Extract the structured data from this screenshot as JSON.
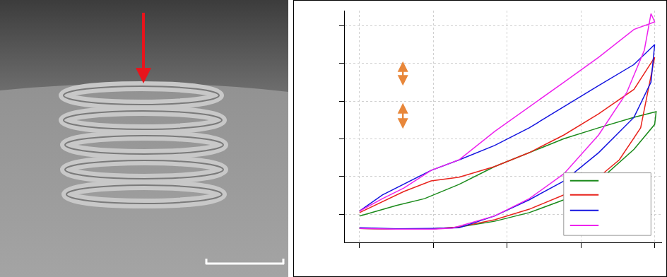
{
  "chart_data": {
    "type": "line",
    "xlim": [
      -0.2,
      4.1
    ],
    "xticks": [
      0,
      1,
      2,
      3,
      4
    ],
    "ylim": [
      0.25,
      6.4
    ],
    "yticks": [
      1,
      2,
      3,
      4,
      5,
      6
    ],
    "grid": true,
    "tick_labels": false,
    "series": [
      {
        "color": "#1a8a1a",
        "x": [
          0,
          0.5,
          1.0,
          1.35,
          1.83,
          2.3,
          2.77,
          3.24,
          3.72,
          4.0,
          4.02,
          3.72,
          3.24,
          2.77,
          2.3,
          1.83,
          1.35,
          0.88,
          0.5,
          0
        ],
        "values": [
          0.62,
          0.6,
          0.61,
          0.66,
          0.81,
          1.04,
          1.38,
          1.88,
          2.72,
          3.38,
          3.72,
          3.57,
          3.29,
          3.0,
          2.63,
          2.26,
          1.79,
          1.41,
          1.23,
          0.95
        ]
      },
      {
        "color": "#e8231c",
        "x": [
          0,
          0.5,
          1.0,
          1.35,
          1.83,
          2.3,
          2.77,
          3.24,
          3.52,
          3.81,
          4.0,
          3.72,
          3.24,
          2.77,
          2.3,
          1.83,
          1.35,
          0.97,
          0.6,
          0
        ],
        "values": [
          0.62,
          0.6,
          0.61,
          0.66,
          0.85,
          1.13,
          1.51,
          1.98,
          2.44,
          3.29,
          5.16,
          4.31,
          3.66,
          3.1,
          2.63,
          2.26,
          1.98,
          1.88,
          1.6,
          1.04
        ]
      },
      {
        "color": "#1414e0",
        "x": [
          0,
          0.5,
          1.0,
          1.35,
          1.83,
          2.3,
          2.77,
          3.24,
          3.72,
          3.95,
          4.0,
          3.72,
          3.24,
          2.77,
          2.3,
          1.83,
          1.35,
          0.97,
          0.6,
          0.31,
          0
        ],
        "values": [
          0.64,
          0.61,
          0.62,
          0.64,
          0.95,
          1.38,
          1.88,
          2.63,
          3.57,
          4.5,
          5.5,
          4.97,
          4.41,
          3.85,
          3.29,
          2.82,
          2.44,
          2.16,
          1.79,
          1.51,
          1.08
        ]
      },
      {
        "color": "#ee22ee",
        "x": [
          0,
          0.5,
          1.0,
          1.26,
          1.83,
          2.3,
          2.77,
          3.24,
          3.62,
          3.86,
          3.95,
          4.0,
          3.72,
          3.24,
          2.77,
          2.3,
          1.83,
          1.35,
          0.97,
          0.6,
          0.31,
          0
        ],
        "values": [
          0.62,
          0.6,
          0.6,
          0.63,
          0.95,
          1.41,
          2.07,
          3.1,
          4.22,
          5.35,
          6.32,
          6.1,
          5.9,
          5.16,
          4.5,
          3.85,
          3.19,
          2.44,
          2.16,
          1.69,
          1.41,
          1.08
        ]
      }
    ]
  }
}
